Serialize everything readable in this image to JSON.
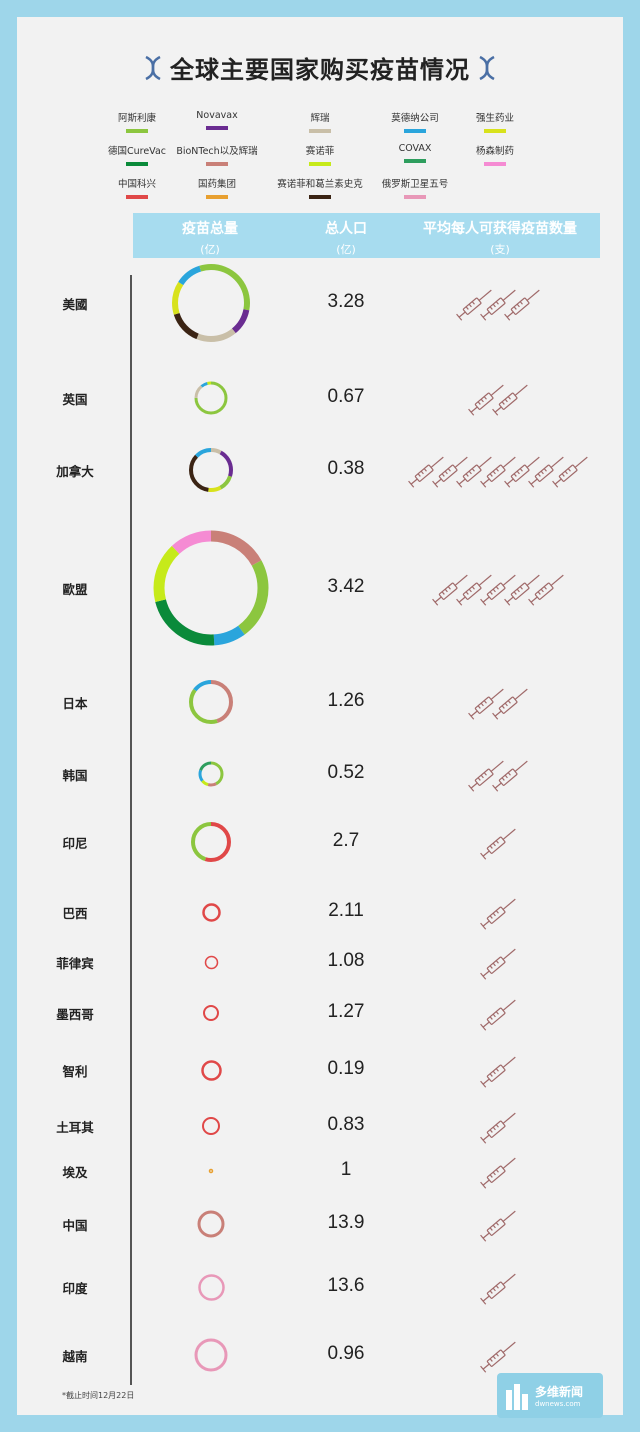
{
  "title": "全球主要国家购买疫苗情况",
  "colors": {
    "background": "#9ed6ea",
    "card": "#f2f2f2",
    "header_bar": "#a7dcef"
  },
  "legend": [
    {
      "key": "astrazeneca",
      "label": "阿斯利康",
      "color": "#8cc63f"
    },
    {
      "key": "novavax",
      "label": "Novavax",
      "color": "#6a2c91"
    },
    {
      "key": "pfizer",
      "label": "辉瑞",
      "color": "#c9bfa8"
    },
    {
      "key": "moderna",
      "label": "莫德纳公司",
      "color": "#2aa5dc"
    },
    {
      "key": "jnj",
      "label": "强生药业",
      "color": "#d8e21c"
    },
    {
      "key": "curevac",
      "label": "德国CureVac",
      "color": "#0a8a3a"
    },
    {
      "key": "biontech",
      "label": "BioNTech以及辉瑞",
      "color": "#c98078"
    },
    {
      "key": "sanofi",
      "label": "赛诺菲",
      "color": "#c6ea1a"
    },
    {
      "key": "covax",
      "label": "COVAX",
      "color": "#2e9e5e"
    },
    {
      "key": "janssen",
      "label": "杨森制药",
      "color": "#f58bd3"
    },
    {
      "key": "sinovac",
      "label": "中国科兴",
      "color": "#e04848"
    },
    {
      "key": "sinopharm",
      "label": "国药集团",
      "color": "#e8a030"
    },
    {
      "key": "sanofi_gsk",
      "label": "赛诺菲和葛兰素史克",
      "color": "#3b2414"
    },
    {
      "key": "sputnik",
      "label": "俄罗斯卫星五号",
      "color": "#e898b8"
    }
  ],
  "header": {
    "col1": "疫苗总量",
    "col1_unit": "(亿)",
    "col2": "总人口",
    "col2_unit": "(亿)",
    "col3": "平均每人可获得疫苗数量",
    "col3_unit": "(支)"
  },
  "chart_data": {
    "type": "table",
    "columns": [
      "疫苗总量",
      "总人口",
      "平均每人可获得疫苗数量"
    ],
    "rows": [
      {
        "country": "美國",
        "population": "3.28",
        "doses_per_person": 3,
        "segments": [
          [
            "astrazeneca",
            28
          ],
          [
            "novavax",
            11
          ],
          [
            "pfizer",
            17
          ],
          [
            "sanofi_gsk",
            14
          ],
          [
            "jnj",
            14
          ],
          [
            "moderna",
            11
          ],
          [
            "astrazeneca",
            5
          ]
        ]
      },
      {
        "country": "英国",
        "population": "0.67",
        "doses_per_person": 2,
        "segments": [
          [
            "astrazeneca",
            75
          ],
          [
            "pfizer",
            14
          ],
          [
            "moderna",
            7
          ],
          [
            "sanofi",
            4
          ]
        ]
      },
      {
        "country": "加拿大",
        "population": "0.38",
        "doses_per_person": 7,
        "segments": [
          [
            "pfizer",
            8
          ],
          [
            "novavax",
            22
          ],
          [
            "astrazeneca",
            12
          ],
          [
            "jnj",
            10
          ],
          [
            "sanofi_gsk",
            35
          ],
          [
            "moderna",
            13
          ]
        ]
      },
      {
        "country": "歐盟",
        "population": "3.42",
        "doses_per_person": 5,
        "segments": [
          [
            "biontech",
            17
          ],
          [
            "astrazeneca",
            23
          ],
          [
            "moderna",
            9
          ],
          [
            "curevac",
            22
          ],
          [
            "sanofi",
            17
          ],
          [
            "janssen",
            12
          ]
        ]
      },
      {
        "country": "日本",
        "population": "1.26",
        "doses_per_person": 2,
        "segments": [
          [
            "biontech",
            45
          ],
          [
            "astrazeneca",
            40
          ],
          [
            "moderna",
            15
          ]
        ]
      },
      {
        "country": "韩国",
        "population": "0.52",
        "doses_per_person": 1.5,
        "segments": [
          [
            "astrazeneca",
            42
          ],
          [
            "biontech",
            12
          ],
          [
            "sanofi",
            10
          ],
          [
            "moderna",
            16
          ],
          [
            "covax",
            20
          ]
        ]
      },
      {
        "country": "印尼",
        "population": "2.7",
        "doses_per_person": 0.7,
        "segments": [
          [
            "sinovac",
            55
          ],
          [
            "astrazeneca",
            45
          ]
        ]
      },
      {
        "country": "巴西",
        "population": "2.11",
        "doses_per_person": 0.5,
        "segments": [
          [
            "sinovac",
            100
          ]
        ]
      },
      {
        "country": "菲律宾",
        "population": "1.08",
        "doses_per_person": 0.5,
        "segments": [
          [
            "sinovac",
            100
          ]
        ]
      },
      {
        "country": "墨西哥",
        "population": "1.27",
        "doses_per_person": 0.5,
        "segments": [
          [
            "sinovac",
            100
          ]
        ]
      },
      {
        "country": "智利",
        "population": "0.19",
        "doses_per_person": 0.5,
        "segments": [
          [
            "sinovac",
            100
          ]
        ]
      },
      {
        "country": "土耳其",
        "population": "0.83",
        "doses_per_person": 0.5,
        "segments": [
          [
            "sinovac",
            100
          ]
        ]
      },
      {
        "country": "埃及",
        "population": "1",
        "doses_per_person": 0.5,
        "segments": [
          [
            "sinopharm",
            100
          ]
        ]
      },
      {
        "country": "中国",
        "population": "13.9",
        "doses_per_person": 0.5,
        "segments": [
          [
            "biontech",
            100
          ]
        ]
      },
      {
        "country": "印度",
        "population": "13.6",
        "doses_per_person": 0.5,
        "segments": [
          [
            "sputnik",
            100
          ]
        ]
      },
      {
        "country": "越南",
        "population": "0.96",
        "doses_per_person": 0.5,
        "segments": [
          [
            "sputnik",
            100
          ]
        ]
      }
    ]
  },
  "footnote": "*截止时间12月22日",
  "logo": {
    "brand": "多维新闻",
    "domain": "dwnews.com"
  }
}
